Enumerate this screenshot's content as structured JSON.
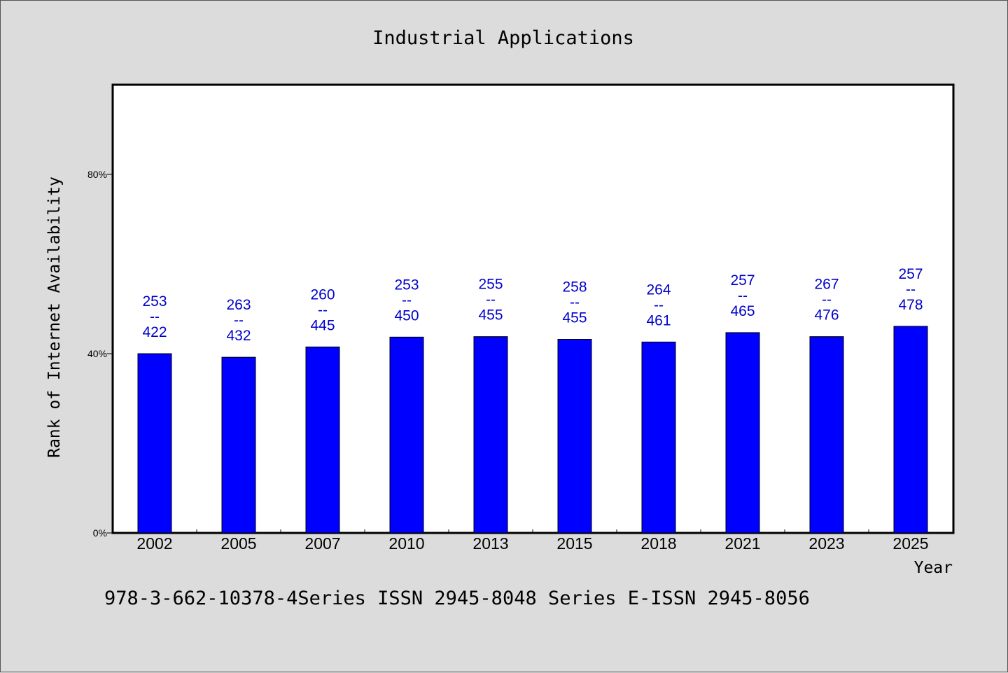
{
  "colors": {
    "bar": "#0000ff",
    "data_label": "#0000cc",
    "plot_background": "#ffffff",
    "page_background": "#dcdcdc"
  },
  "footer": "978-3-662-10378-4Series ISSN 2945-8048 Series E-ISSN 2945-8056",
  "chart_data": {
    "type": "bar",
    "title": "Industrial Applications",
    "xlabel": "Year",
    "ylabel": "Rank of Internet Availability",
    "categories": [
      "2002",
      "2005",
      "2007",
      "2010",
      "2013",
      "2015",
      "2018",
      "2021",
      "2023",
      "2025"
    ],
    "values": [
      40,
      39.2,
      41.5,
      43.7,
      43.8,
      43.2,
      42.6,
      44.7,
      43.8,
      46.1
    ],
    "value_unit": "%",
    "data_labels": [
      [
        "253",
        "--",
        "422"
      ],
      [
        "263",
        "--",
        "432"
      ],
      [
        "260",
        "--",
        "445"
      ],
      [
        "253",
        "--",
        "450"
      ],
      [
        "255",
        "--",
        "455"
      ],
      [
        "258",
        "--",
        "455"
      ],
      [
        "264",
        "--",
        "461"
      ],
      [
        "257",
        "--",
        "465"
      ],
      [
        "267",
        "--",
        "476"
      ],
      [
        "257",
        "--",
        "478"
      ]
    ],
    "y_ticks": [
      {
        "value": 0,
        "label": "0%"
      },
      {
        "value": 40,
        "label": "40%"
      },
      {
        "value": 80,
        "label": "80%"
      }
    ],
    "ylim": [
      0,
      100
    ],
    "grid": false,
    "legend": "none"
  }
}
